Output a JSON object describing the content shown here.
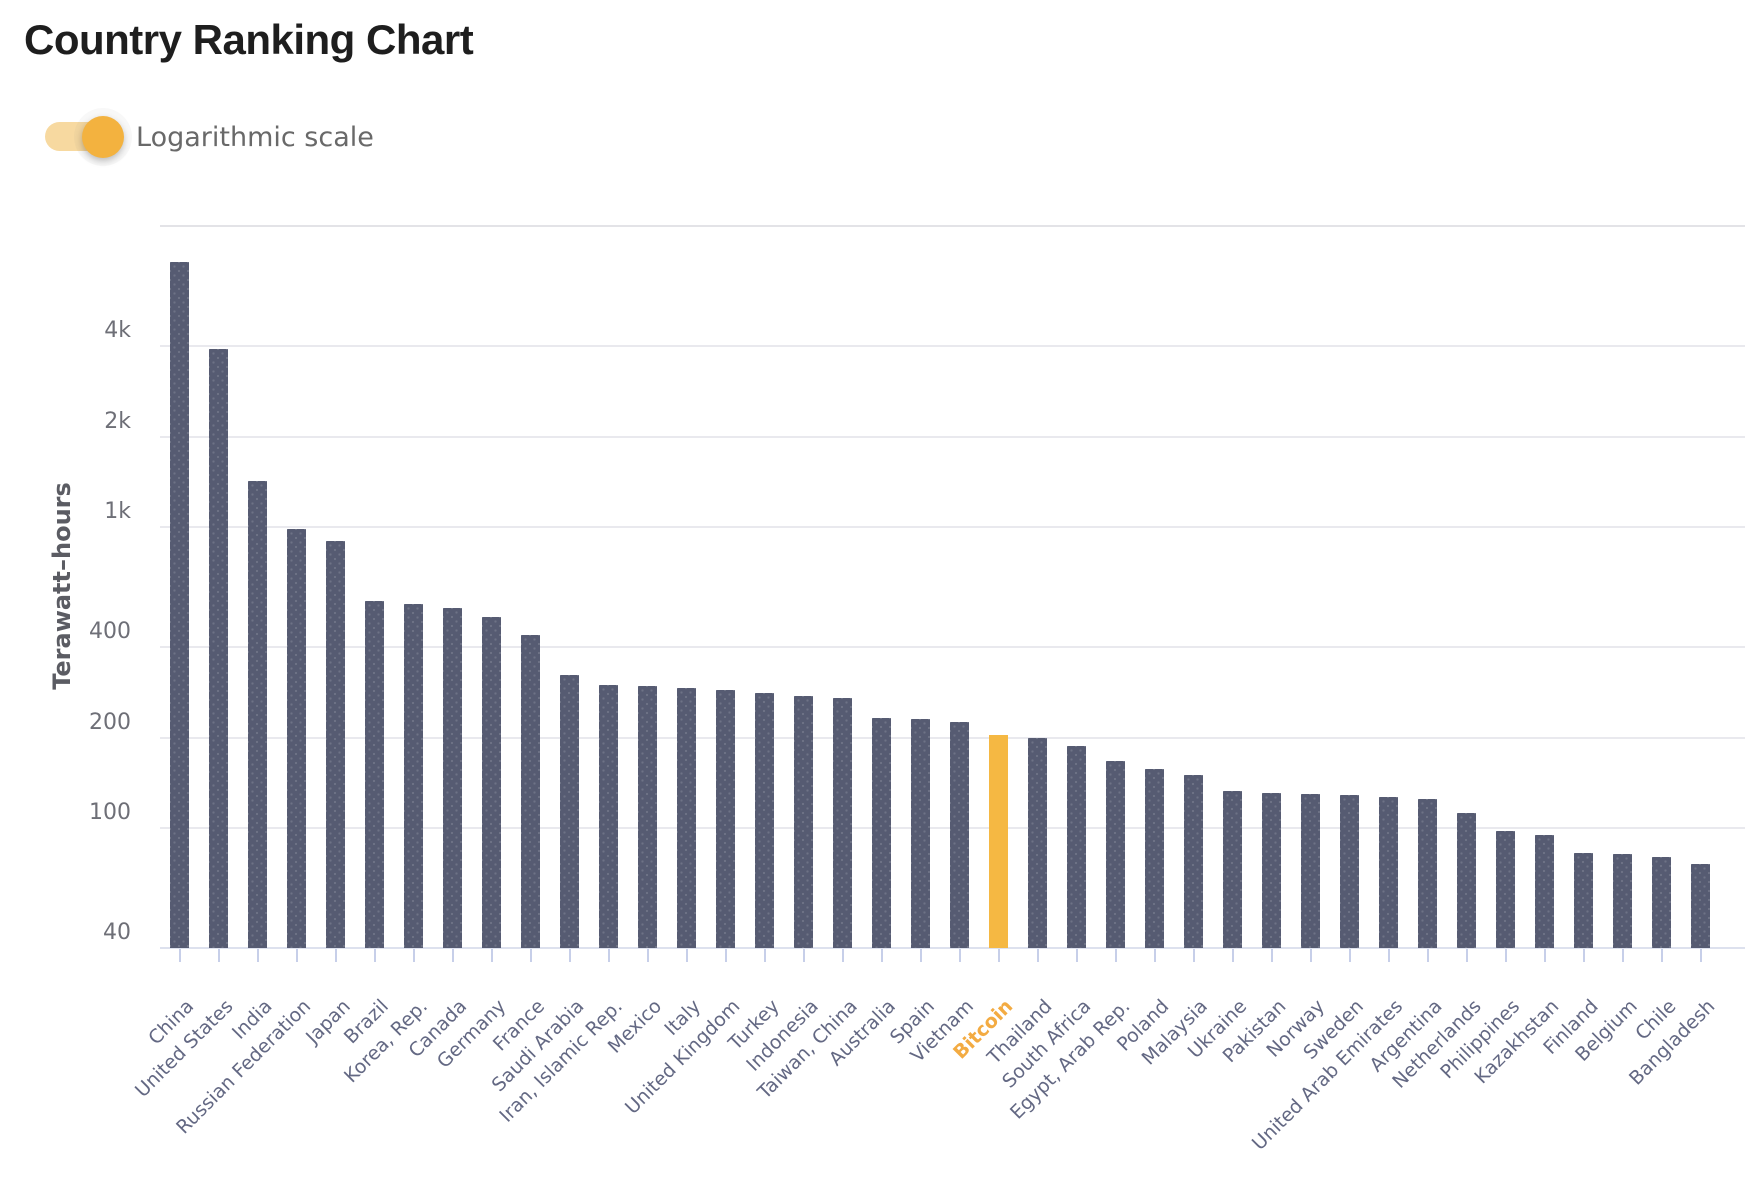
{
  "title": "Country Ranking Chart",
  "toggle": {
    "label": "Logarithmic scale",
    "state": "on"
  },
  "colors": {
    "bar": "#565b72",
    "highlight_bar": "#f5b843",
    "highlight_label": "#f3ab42",
    "toggle_track": "#f7d9a0",
    "toggle_knob": "#f3b23f"
  },
  "chart_data": {
    "type": "bar",
    "title": "Country Ranking Chart",
    "xlabel": "",
    "ylabel": "Terawatt–hours",
    "unit": "TWh",
    "y_scale": "log",
    "ylim": [
      40,
      10000
    ],
    "grid": true,
    "y_ticks": [
      {
        "label": "4k",
        "value": 4000
      },
      {
        "label": "2k",
        "value": 2000
      },
      {
        "label": "1k",
        "value": 1000
      },
      {
        "label": "400",
        "value": 400
      },
      {
        "label": "200",
        "value": 200
      },
      {
        "label": "100",
        "value": 100
      },
      {
        "label": "40",
        "value": 40
      }
    ],
    "extra_gridlines": [
      10000
    ],
    "highlight_category": "Bitcoin",
    "categories": [
      "China",
      "United States",
      "India",
      "Russian Federation",
      "Japan",
      "Brazil",
      "Korea, Rep.",
      "Canada",
      "Germany",
      "France",
      "Saudi Arabia",
      "Iran, Islamic Rep.",
      "Mexico",
      "Italy",
      "United Kingdom",
      "Turkey",
      "Indonesia",
      "Taiwan, China",
      "Australia",
      "Spain",
      "Vietnam",
      "Bitcoin",
      "Thailand",
      "South Africa",
      "Egypt, Arab Rep.",
      "Poland",
      "Malaysia",
      "Ukraine",
      "Pakistan",
      "Norway",
      "Sweden",
      "United Arab Emirates",
      "Argentina",
      "Netherlands",
      "Philippines",
      "Kazakhstan",
      "Finland",
      "Belgium",
      "Chile",
      "Bangladesh"
    ],
    "values": [
      7600,
      3900,
      1420,
      990,
      900,
      570,
      558,
      540,
      502,
      440,
      322,
      299,
      298,
      293,
      287,
      281,
      276,
      271,
      233,
      230,
      226,
      204,
      199,
      188,
      167,
      157,
      150,
      133,
      131,
      130,
      129,
      127,
      125,
      112,
      98,
      95,
      83,
      82,
      80,
      76
    ]
  }
}
